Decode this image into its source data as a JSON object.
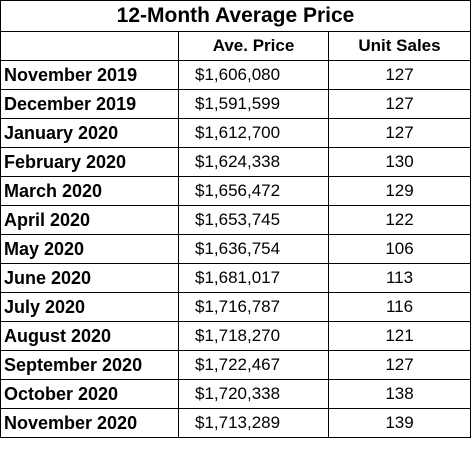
{
  "table": {
    "title": "12-Month Average Price",
    "headers": [
      "",
      "Ave. Price",
      "Unit Sales"
    ],
    "rows": [
      {
        "month": "November 2019",
        "price": "$1,606,080",
        "units": "127"
      },
      {
        "month": "December 2019",
        "price": "$1,591,599",
        "units": "127"
      },
      {
        "month": "January 2020",
        "price": "$1,612,700",
        "units": "127"
      },
      {
        "month": "February 2020",
        "price": "$1,624,338",
        "units": "130"
      },
      {
        "month": "March 2020",
        "price": "$1,656,472",
        "units": "129"
      },
      {
        "month": "April 2020",
        "price": "$1,653,745",
        "units": "122"
      },
      {
        "month": "May 2020",
        "price": "$1,636,754",
        "units": "106"
      },
      {
        "month": "June 2020",
        "price": "$1,681,017",
        "units": "113"
      },
      {
        "month": "July 2020",
        "price": "$1,716,787",
        "units": "116"
      },
      {
        "month": "August 2020",
        "price": "$1,718,270",
        "units": "121"
      },
      {
        "month": "September 2020",
        "price": "$1,722,467",
        "units": "127"
      },
      {
        "month": "October 2020",
        "price": "$1,720,338",
        "units": "138"
      },
      {
        "month": "November 2020",
        "price": "$1,713,289",
        "units": "139"
      }
    ]
  }
}
